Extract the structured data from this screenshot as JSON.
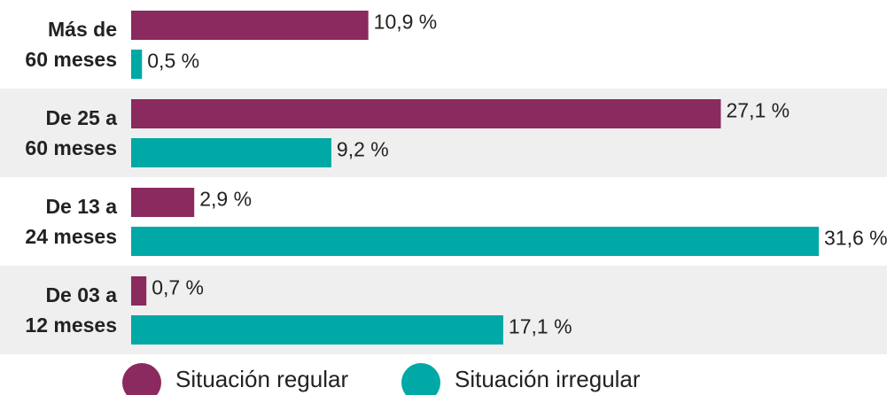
{
  "chart_data": {
    "type": "bar",
    "orientation": "horizontal",
    "categories": [
      "Más de\n60 meses",
      "De 25 a\n60 meses",
      "De 13 a\n24 meses",
      "De 03 a\n12 meses"
    ],
    "series": [
      {
        "name": "Situación regular",
        "color": "#8b2a5e",
        "values": [
          10.9,
          27.1,
          2.9,
          0.7
        ],
        "value_labels": [
          "10,9 %",
          "27,1 %",
          "2,9 %",
          "0,7 %"
        ]
      },
      {
        "name": "Situación irregular",
        "color": "#00a9a5",
        "values": [
          0.5,
          9.2,
          31.6,
          17.1
        ],
        "value_labels": [
          "0,5 %",
          "9,2 %",
          "31,6 %",
          "17,1 %"
        ]
      }
    ]
  }
}
